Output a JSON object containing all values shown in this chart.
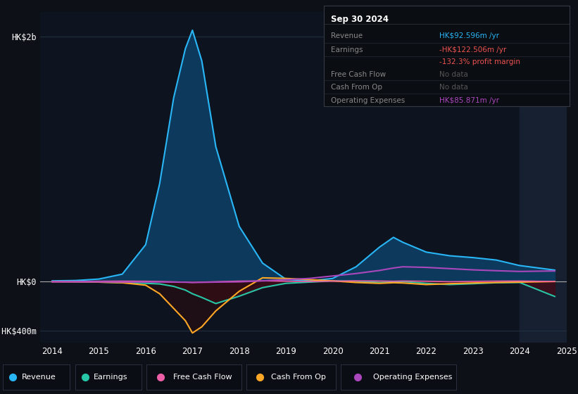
{
  "bg_color": "#0d1117",
  "plot_bg_color": "#0d1420",
  "grid_color": "#253545",
  "zero_line_color": "#cccccc",
  "years": [
    2014,
    2014.5,
    2015,
    2015.5,
    2016,
    2016.3,
    2016.6,
    2016.85,
    2017.0,
    2017.2,
    2017.5,
    2018.0,
    2018.5,
    2019.0,
    2019.5,
    2020.0,
    2020.5,
    2021.0,
    2021.3,
    2021.5,
    2022.0,
    2022.5,
    2023.0,
    2023.5,
    2024.0,
    2024.75
  ],
  "revenue": [
    5,
    8,
    20,
    60,
    300,
    800,
    1500,
    1900,
    2050,
    1800,
    1100,
    450,
    150,
    18,
    5,
    25,
    120,
    280,
    360,
    320,
    240,
    210,
    195,
    175,
    130,
    93
  ],
  "earnings": [
    0,
    -2,
    -5,
    -10,
    -15,
    -20,
    -40,
    -70,
    -100,
    -130,
    -180,
    -120,
    -50,
    -15,
    -5,
    5,
    2,
    -8,
    -5,
    0,
    -15,
    -25,
    -18,
    -10,
    -8,
    -122
  ],
  "free_cash_flow": [
    0,
    0,
    2,
    3,
    2,
    0,
    -3,
    -5,
    -8,
    -5,
    -2,
    3,
    5,
    2,
    0,
    3,
    5,
    4,
    2,
    4,
    2,
    -2,
    1,
    3,
    4,
    0
  ],
  "cash_from_op": [
    -2,
    -3,
    -5,
    -10,
    -30,
    -100,
    -220,
    -320,
    -420,
    -370,
    -240,
    -80,
    30,
    25,
    15,
    5,
    -8,
    -15,
    -10,
    -12,
    -25,
    -18,
    -12,
    -8,
    -5,
    0
  ],
  "operating_expenses": [
    -3,
    -3,
    -3,
    -4,
    -4,
    -4,
    -5,
    -6,
    -8,
    -7,
    -5,
    -3,
    5,
    15,
    25,
    45,
    65,
    90,
    110,
    120,
    115,
    105,
    95,
    88,
    82,
    86
  ],
  "revenue_color": "#29b6f6",
  "revenue_fill": "#0d3a5c",
  "earnings_color": "#26c6a6",
  "free_cash_flow_color": "#ef5fa7",
  "cash_from_op_color": "#ffa726",
  "earnings_fill": "#2a0d18",
  "cash_from_op_fill": "#3a1020",
  "operating_expenses_color": "#ab47bc",
  "ylim": [
    -500,
    2200
  ],
  "yticks": [
    -400,
    0,
    2000
  ],
  "ytick_labels": [
    "-HK$400m",
    "HK$0",
    "HK$2b"
  ],
  "shade_start": 2024.0,
  "xlim_min": 2013.75,
  "xlim_max": 2025.0,
  "legend_items": [
    "Revenue",
    "Earnings",
    "Free Cash Flow",
    "Cash From Op",
    "Operating Expenses"
  ],
  "legend_colors": [
    "#29b6f6",
    "#26c6a6",
    "#ef5fa7",
    "#ffa726",
    "#ab47bc"
  ],
  "info_box": {
    "title": "Sep 30 2024",
    "rows": [
      {
        "label": "Revenue",
        "value": "HK$92.596m /yr",
        "value_color": "#29b6f6"
      },
      {
        "label": "Earnings",
        "value": "-HK$122.506m /yr",
        "value_color": "#ef5350"
      },
      {
        "label": "",
        "value": "-132.3% profit margin",
        "value_color": "#ef5350"
      },
      {
        "label": "Free Cash Flow",
        "value": "No data",
        "value_color": "#555555"
      },
      {
        "label": "Cash From Op",
        "value": "No data",
        "value_color": "#555555"
      },
      {
        "label": "Operating Expenses",
        "value": "HK$85.871m /yr",
        "value_color": "#ab47bc"
      }
    ]
  }
}
